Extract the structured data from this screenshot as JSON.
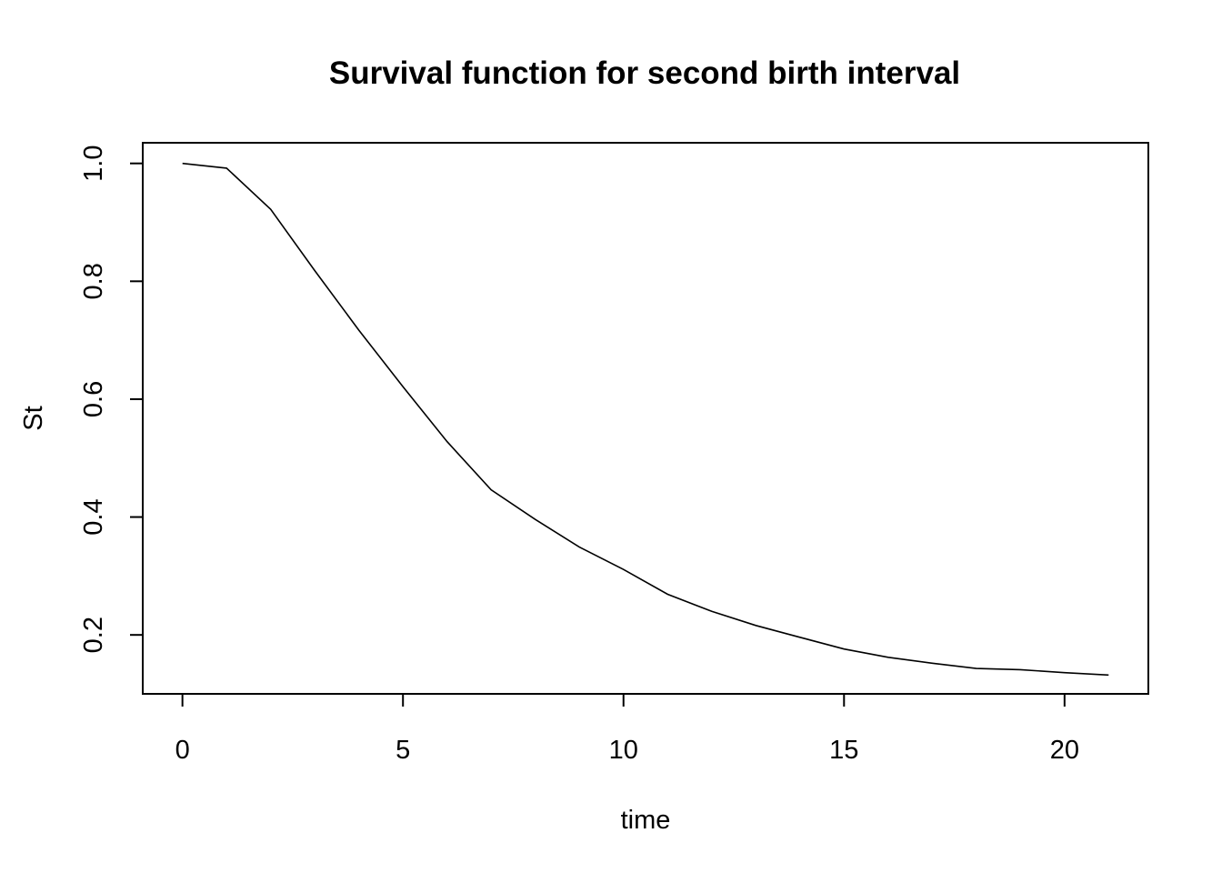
{
  "chart_data": {
    "type": "line",
    "title": "Survival function for second birth interval",
    "xlabel": "time",
    "ylabel": "St",
    "xlim": [
      -0.9,
      21.9
    ],
    "ylim": [
      0.1,
      1.035
    ],
    "xticks": [
      0,
      5,
      10,
      15,
      20
    ],
    "xtick_labels": [
      "0",
      "5",
      "10",
      "15",
      "20"
    ],
    "yticks": [
      0.2,
      0.4,
      0.6,
      0.8,
      1.0
    ],
    "ytick_labels": [
      "0.2",
      "0.4",
      "0.6",
      "0.8",
      "1.0"
    ],
    "grid": false,
    "series": [
      {
        "x": [
          0,
          1,
          2,
          3,
          4,
          5,
          6,
          7,
          8,
          9,
          10,
          11,
          12,
          13,
          14,
          15,
          16,
          17,
          18,
          19,
          20,
          21
        ],
        "y": [
          1.0,
          0.992,
          0.922,
          0.818,
          0.717,
          0.621,
          0.528,
          0.446,
          0.396,
          0.349,
          0.311,
          0.269,
          0.24,
          0.216,
          0.196,
          0.176,
          0.162,
          0.152,
          0.143,
          0.141,
          0.136,
          0.132
        ]
      }
    ]
  }
}
